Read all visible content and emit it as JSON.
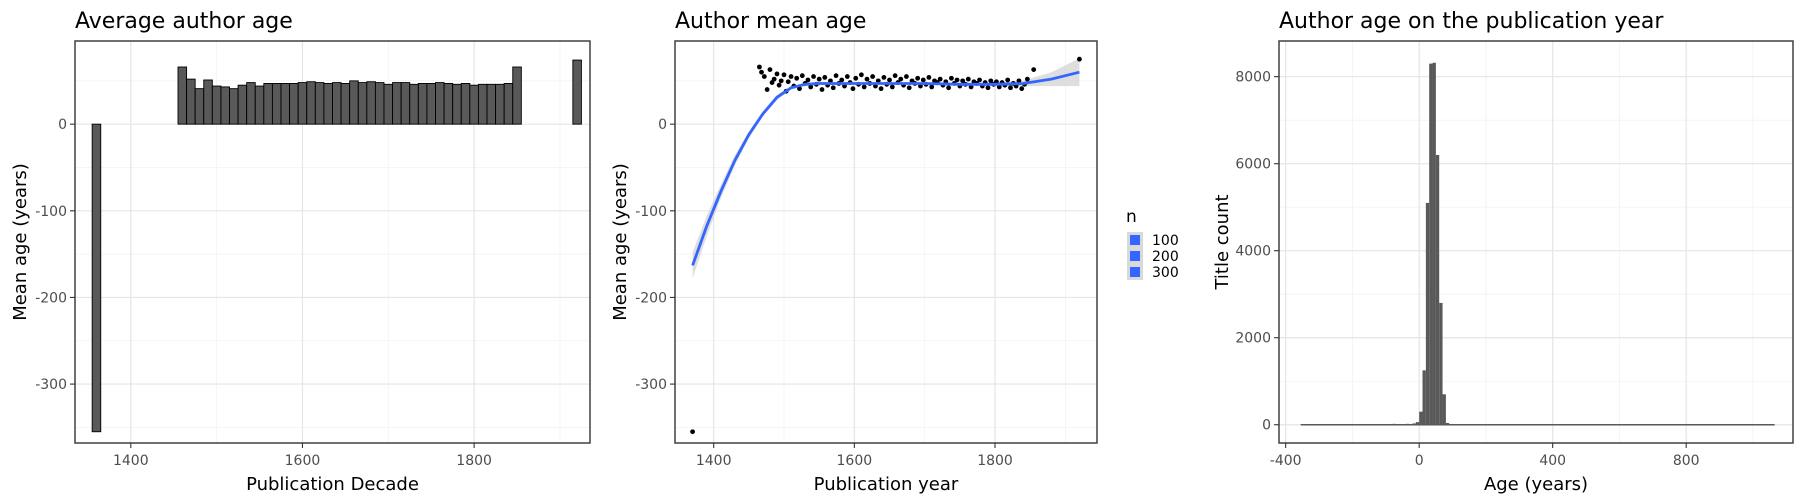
{
  "chart_data": [
    {
      "type": "bar",
      "title": "Average author age",
      "xlabel": "Publication Decade",
      "ylabel": "Mean age (years)",
      "xlim": [
        1335,
        1935
      ],
      "ylim": [
        -368,
        96
      ],
      "xticks": [
        1400,
        1600,
        1800
      ],
      "yticks": [
        0,
        -100,
        -200,
        -300
      ],
      "grid": true,
      "bar_fill": "#595959",
      "bar_width": 10,
      "x": [
        1360,
        1460,
        1470,
        1480,
        1490,
        1500,
        1510,
        1520,
        1530,
        1540,
        1550,
        1560,
        1570,
        1580,
        1590,
        1600,
        1610,
        1620,
        1630,
        1640,
        1650,
        1660,
        1670,
        1680,
        1690,
        1700,
        1710,
        1720,
        1730,
        1740,
        1750,
        1760,
        1770,
        1780,
        1790,
        1800,
        1810,
        1820,
        1830,
        1840,
        1850,
        1920
      ],
      "values": [
        -355,
        66,
        52,
        41,
        51,
        44,
        43,
        41,
        45,
        48,
        44,
        47,
        47,
        47,
        47,
        48,
        49,
        48,
        47,
        48,
        47,
        50,
        48,
        49,
        48,
        46,
        48,
        48,
        46,
        47,
        47,
        48,
        47,
        46,
        47,
        45,
        46,
        46,
        46,
        47,
        66,
        74
      ]
    },
    {
      "type": "scatter",
      "title": "Author mean age",
      "xlabel": "Publication year",
      "ylabel": "Mean age (years)",
      "xlim": [
        1345,
        1945
      ],
      "ylim": [
        -368,
        96
      ],
      "xticks": [
        1400,
        1600,
        1800
      ],
      "yticks": [
        0,
        -100,
        -200,
        -300
      ],
      "grid": true,
      "points": [
        [
          1370,
          -355
        ],
        [
          1465,
          66
        ],
        [
          1468,
          60
        ],
        [
          1472,
          55
        ],
        [
          1476,
          40
        ],
        [
          1480,
          63
        ],
        [
          1483,
          48
        ],
        [
          1486,
          52
        ],
        [
          1490,
          58
        ],
        [
          1493,
          45
        ],
        [
          1496,
          50
        ],
        [
          1500,
          57
        ],
        [
          1503,
          38
        ],
        [
          1506,
          49
        ],
        [
          1510,
          55
        ],
        [
          1514,
          44
        ],
        [
          1518,
          53
        ],
        [
          1522,
          41
        ],
        [
          1526,
          56
        ],
        [
          1530,
          47
        ],
        [
          1534,
          51
        ],
        [
          1538,
          43
        ],
        [
          1542,
          55
        ],
        [
          1546,
          46
        ],
        [
          1550,
          52
        ],
        [
          1554,
          40
        ],
        [
          1558,
          54
        ],
        [
          1562,
          45
        ],
        [
          1566,
          50
        ],
        [
          1570,
          42
        ],
        [
          1574,
          56
        ],
        [
          1578,
          47
        ],
        [
          1582,
          51
        ],
        [
          1586,
          44
        ],
        [
          1590,
          55
        ],
        [
          1594,
          48
        ],
        [
          1598,
          41
        ],
        [
          1602,
          53
        ],
        [
          1606,
          46
        ],
        [
          1610,
          57
        ],
        [
          1614,
          43
        ],
        [
          1618,
          52
        ],
        [
          1622,
          47
        ],
        [
          1626,
          55
        ],
        [
          1630,
          44
        ],
        [
          1634,
          50
        ],
        [
          1638,
          41
        ],
        [
          1642,
          54
        ],
        [
          1646,
          46
        ],
        [
          1650,
          51
        ],
        [
          1654,
          43
        ],
        [
          1658,
          56
        ],
        [
          1662,
          48
        ],
        [
          1666,
          52
        ],
        [
          1670,
          45
        ],
        [
          1674,
          55
        ],
        [
          1678,
          42
        ],
        [
          1682,
          50
        ],
        [
          1686,
          47
        ],
        [
          1690,
          53
        ],
        [
          1694,
          44
        ],
        [
          1698,
          51
        ],
        [
          1702,
          46
        ],
        [
          1706,
          54
        ],
        [
          1710,
          43
        ],
        [
          1714,
          50
        ],
        [
          1718,
          48
        ],
        [
          1722,
          52
        ],
        [
          1726,
          45
        ],
        [
          1730,
          49
        ],
        [
          1734,
          42
        ],
        [
          1738,
          53
        ],
        [
          1742,
          47
        ],
        [
          1746,
          51
        ],
        [
          1750,
          44
        ],
        [
          1754,
          50
        ],
        [
          1758,
          46
        ],
        [
          1762,
          52
        ],
        [
          1766,
          43
        ],
        [
          1770,
          49
        ],
        [
          1774,
          47
        ],
        [
          1778,
          51
        ],
        [
          1782,
          44
        ],
        [
          1786,
          48
        ],
        [
          1790,
          42
        ],
        [
          1794,
          50
        ],
        [
          1798,
          46
        ],
        [
          1802,
          49
        ],
        [
          1806,
          43
        ],
        [
          1810,
          48
        ],
        [
          1814,
          45
        ],
        [
          1818,
          51
        ],
        [
          1822,
          42
        ],
        [
          1826,
          47
        ],
        [
          1830,
          44
        ],
        [
          1834,
          50
        ],
        [
          1838,
          41
        ],
        [
          1842,
          46
        ],
        [
          1846,
          52
        ],
        [
          1855,
          63
        ],
        [
          1920,
          75
        ]
      ],
      "smooth": {
        "x": [
          1370,
          1390,
          1410,
          1430,
          1450,
          1470,
          1490,
          1510,
          1530,
          1550,
          1600,
          1650,
          1700,
          1750,
          1800,
          1840,
          1880,
          1920
        ],
        "y": [
          -163,
          -118,
          -78,
          -42,
          -12,
          12,
          31,
          42,
          46,
          47,
          47,
          47,
          47,
          46,
          46,
          47,
          52,
          60
        ],
        "ymin": [
          -178,
          -130,
          -86,
          -48,
          -16,
          9,
          28,
          40,
          44,
          45,
          46,
          46,
          46,
          45,
          44,
          44,
          44,
          44
        ],
        "ymax": [
          -148,
          -106,
          -70,
          -36,
          -8,
          15,
          34,
          44,
          48,
          49,
          48,
          48,
          48,
          47,
          48,
          50,
          60,
          76
        ],
        "color": "#3366ff",
        "band_color": "#d3d3d3"
      },
      "legend": {
        "title": "n",
        "entries": [
          "100",
          "200",
          "300"
        ],
        "position": "right"
      }
    },
    {
      "type": "bar",
      "title": "Author age on the publication year",
      "xlabel": "Age (years)",
      "ylabel": "Title count",
      "xlim": [
        -420,
        1120
      ],
      "ylim": [
        -420,
        8820
      ],
      "xticks": [
        -400,
        0,
        400,
        800
      ],
      "yticks": [
        0,
        2000,
        4000,
        6000,
        8000
      ],
      "grid": true,
      "bar_fill": "#595959",
      "bin_width": 10,
      "bins_start": [
        -80,
        -60,
        -40,
        -20,
        -10,
        0,
        10,
        20,
        30,
        40,
        50,
        60,
        70,
        80
      ],
      "counts": [
        20,
        10,
        20,
        30,
        60,
        300,
        1250,
        5100,
        8300,
        8320,
        6200,
        2800,
        700,
        40
      ],
      "baseline_range": [
        -355,
        1065
      ]
    }
  ]
}
